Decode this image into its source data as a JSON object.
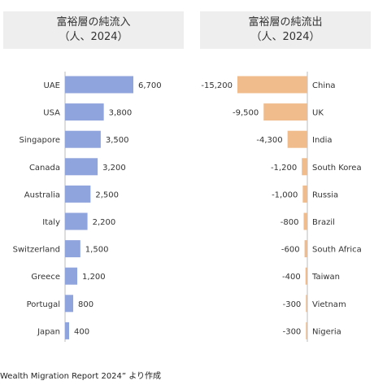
{
  "chart_data": [
    {
      "type": "bar",
      "orientation": "horizontal",
      "title": "富裕層の純流入",
      "subtitle": "（人、2024）",
      "categories": [
        "UAE",
        "USA",
        "Singapore",
        "Canada",
        "Australia",
        "Italy",
        "Switzerland",
        "Greece",
        "Portugal",
        "Japan"
      ],
      "values": [
        6700,
        3800,
        3500,
        3200,
        2500,
        2200,
        1500,
        1200,
        800,
        400
      ],
      "value_labels": [
        "6,700",
        "3,800",
        "3,500",
        "3,200",
        "2,500",
        "2,200",
        "1,500",
        "1,200",
        "800",
        "400"
      ],
      "color": "#8fa3dc",
      "xlim": [
        0,
        6700
      ],
      "grid": false
    },
    {
      "type": "bar",
      "orientation": "horizontal",
      "title": "富裕層の純流出",
      "subtitle": "（人、2024）",
      "categories": [
        "China",
        "UK",
        "India",
        "South Korea",
        "Russia",
        "Brazil",
        "South Africa",
        "Taiwan",
        "Vietnam",
        "Nigeria"
      ],
      "values": [
        -15200,
        -9500,
        -4300,
        -1200,
        -1000,
        -800,
        -600,
        -400,
        -300,
        -300
      ],
      "value_labels": [
        "-15,200",
        "-9,500",
        "-4,300",
        "-1,200",
        "-1,000",
        "-800",
        "-600",
        "-400",
        "-300",
        "-300"
      ],
      "color": "#f0bc8c",
      "xlim": [
        -15200,
        0
      ],
      "grid": false
    }
  ],
  "source": "Wealth Migration Report 2024” より作成",
  "colors": {
    "axis": "#bbbbbb",
    "title_bg": "#eeeeee"
  }
}
